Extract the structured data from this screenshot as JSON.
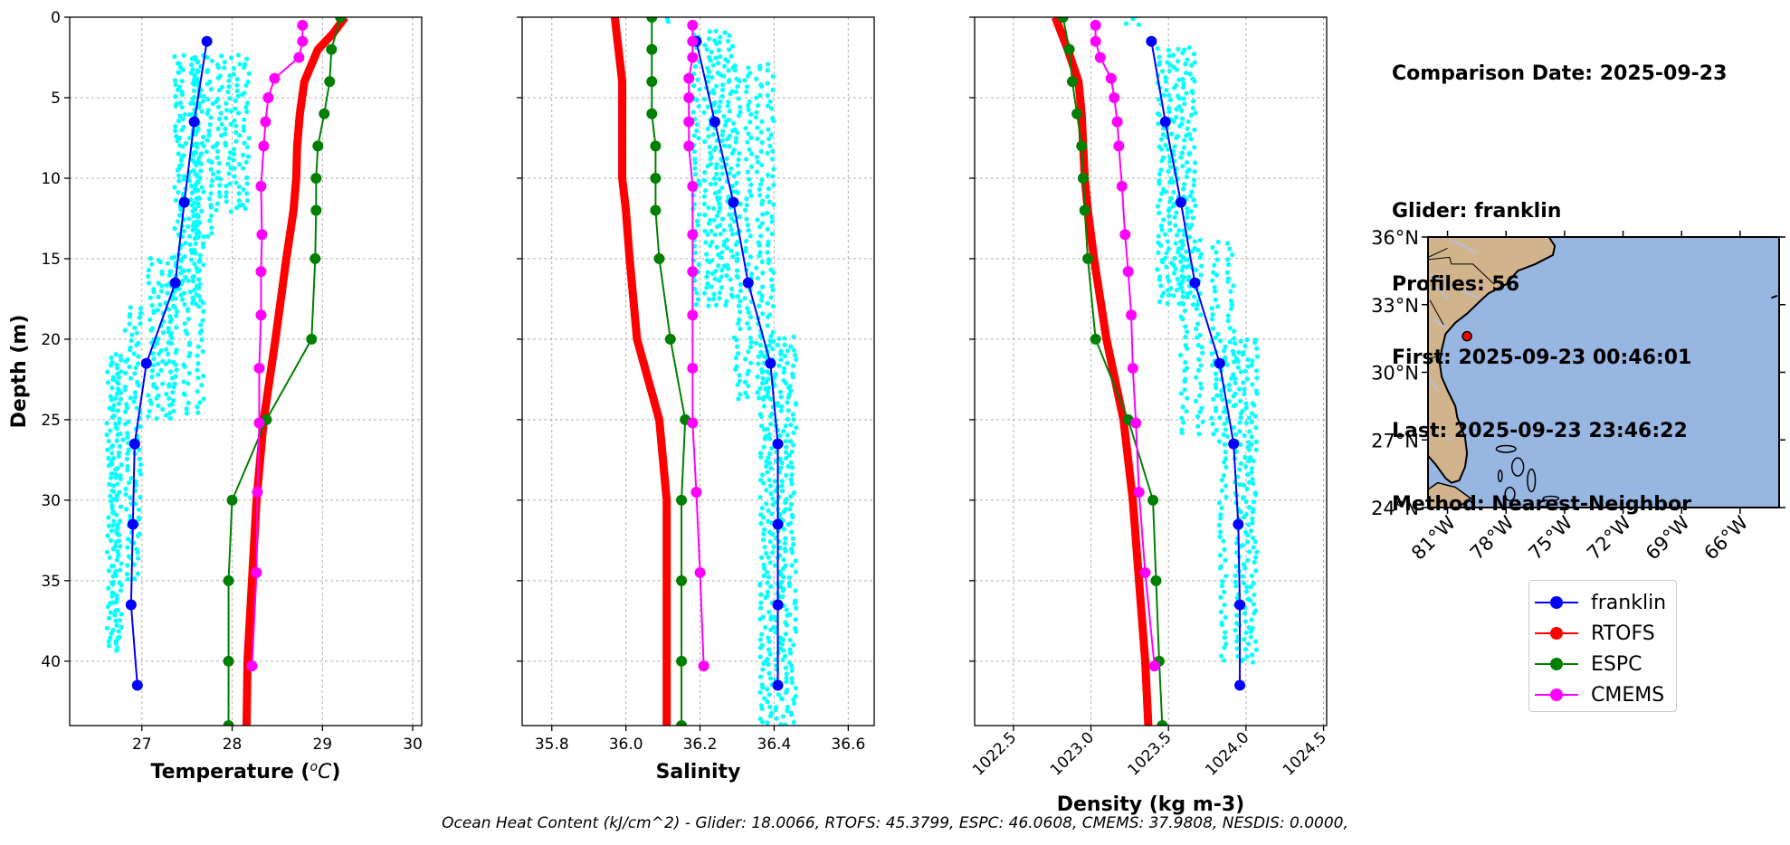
{
  "info": {
    "comparison_date": "Comparison Date: 2025-09-23",
    "glider": "Glider: franklin",
    "profiles": "Profiles: 56",
    "first": "First: 2025-09-23 00:46:01",
    "last": "Last: 2025-09-23 23:46:22",
    "method": "Method: Nearest-Neighbor"
  },
  "footer_text": "Ocean Heat Content (kJ/cm^2) - Glider: 18.0066,  RTOFS: 45.3799,  ESPC: 46.0608,  CMEMS: 37.9808,  NESDIS: 0.0000,",
  "colors": {
    "franklin": "#0000ff",
    "RTOFS": "#ff0000",
    "ESPC": "#008000",
    "CMEMS": "#ff00ff",
    "raw_points": "#00ffff",
    "ocean": "#97b6e1",
    "land": "#d2b48c",
    "rivers": "#a8c5e8",
    "grid": "#b0b0b0"
  },
  "legend": [
    {
      "name": "franklin",
      "color": "#0000ff"
    },
    {
      "name": "RTOFS",
      "color": "#ff0000"
    },
    {
      "name": "ESPC",
      "color": "#008000"
    },
    {
      "name": "CMEMS",
      "color": "#ff00ff"
    }
  ],
  "chart_data": [
    {
      "type": "line",
      "xlabel": "Temperature ($^oC$)",
      "ylabel": "Depth (m)",
      "xlim": [
        26.2,
        30.1
      ],
      "ylim": [
        44,
        0
      ],
      "xticks": [
        "27",
        "28",
        "29",
        "30"
      ],
      "yticks": [
        "0",
        "5",
        "10",
        "15",
        "20",
        "25",
        "30",
        "35",
        "40"
      ],
      "grid": true,
      "scatter_columns": [
        {
          "x": [
            26.7,
            26.65,
            26.75
          ],
          "depth": [
            21,
            39.5
          ]
        },
        {
          "x": [
            26.85,
            26.95
          ],
          "depth": [
            18,
            35
          ]
        },
        {
          "x": [
            27.1,
            27.2,
            27.3,
            27.35
          ],
          "depth": [
            15,
            25
          ]
        },
        {
          "x": [
            27.4,
            27.45,
            27.55,
            27.6,
            27.65
          ],
          "depth": [
            2.5,
            18
          ]
        },
        {
          "x": [
            27.5,
            27.65
          ],
          "depth": [
            18,
            25
          ]
        },
        {
          "x": [
            27.6,
            27.75
          ],
          "depth": [
            2.5,
            14
          ]
        },
        {
          "x": [
            27.85,
            27.95,
            28.05,
            28.15
          ],
          "depth": [
            2.5,
            12
          ]
        }
      ],
      "series": [
        {
          "name": "franklin",
          "color": "#0000ff",
          "line_width": 2,
          "marker": 7,
          "depth": [
            1.5,
            6.5,
            11.5,
            16.5,
            21.5,
            26.5,
            31.5,
            36.5,
            41.5
          ],
          "x": [
            27.72,
            27.58,
            27.47,
            27.37,
            27.05,
            26.92,
            26.9,
            26.88,
            26.95
          ]
        },
        {
          "name": "RTOFS",
          "color": "#ff0000",
          "line_width": 9,
          "marker": 0,
          "depth": [
            0,
            1,
            2,
            4,
            6,
            8,
            10,
            12,
            15,
            20,
            25,
            30,
            35,
            40,
            44
          ],
          "x": [
            29.25,
            29.12,
            28.95,
            28.8,
            28.75,
            28.72,
            28.71,
            28.68,
            28.6,
            28.48,
            28.35,
            28.27,
            28.22,
            28.17,
            28.16
          ]
        },
        {
          "name": "ESPC",
          "color": "#008000",
          "line_width": 2,
          "marker": 7,
          "depth": [
            0,
            2,
            4,
            6,
            8,
            10,
            12,
            15,
            20,
            25,
            30,
            35,
            40,
            44
          ],
          "x": [
            29.2,
            29.1,
            29.08,
            29.02,
            28.95,
            28.93,
            28.93,
            28.92,
            28.88,
            28.38,
            28.0,
            27.96,
            27.96,
            27.96
          ]
        },
        {
          "name": "CMEMS",
          "color": "#ff00ff",
          "line_width": 2,
          "marker": 7,
          "depth": [
            0.5,
            1.5,
            2.5,
            3.8,
            5,
            6.5,
            8,
            10.5,
            13.5,
            15.8,
            18.5,
            21.8,
            25.2,
            29.5,
            34.5,
            40.3
          ],
          "x": [
            28.78,
            28.78,
            28.74,
            28.47,
            28.4,
            28.37,
            28.35,
            28.32,
            28.33,
            28.32,
            28.32,
            28.3,
            28.3,
            28.28,
            28.27,
            28.22
          ]
        }
      ]
    },
    {
      "type": "line",
      "xlabel": "Salinity",
      "ylabel": "",
      "xlim": [
        35.72,
        36.67
      ],
      "ylim": [
        44,
        0
      ],
      "xticks": [
        "35.8",
        "36.0",
        "36.2",
        "36.4",
        "36.6"
      ],
      "yticks": [],
      "grid": true,
      "scatter_columns": [
        {
          "x": [
            36.12
          ],
          "depth": [
            0,
            0.5
          ]
        },
        {
          "x": [
            36.19,
            36.22,
            36.24,
            36.26,
            36.28
          ],
          "depth": [
            1,
            18
          ]
        },
        {
          "x": [
            36.3,
            36.33,
            36.36,
            36.39
          ],
          "depth": [
            3,
            24
          ]
        },
        {
          "x": [
            36.37,
            36.39,
            36.41,
            36.43,
            36.45
          ],
          "depth": [
            20,
            44
          ]
        }
      ],
      "series": [
        {
          "name": "franklin",
          "color": "#0000ff",
          "line_width": 2,
          "marker": 7,
          "depth": [
            1.5,
            6.5,
            11.5,
            16.5,
            21.5,
            26.5,
            31.5,
            36.5,
            41.5
          ],
          "x": [
            36.19,
            36.24,
            36.29,
            36.33,
            36.39,
            36.41,
            36.41,
            36.41,
            36.41
          ]
        },
        {
          "name": "RTOFS",
          "color": "#ff0000",
          "line_width": 9,
          "marker": 0,
          "depth": [
            0,
            2,
            4,
            6,
            8,
            10,
            12,
            15,
            20,
            25,
            30,
            35,
            40,
            44
          ],
          "x": [
            35.97,
            35.98,
            35.99,
            35.99,
            35.99,
            35.99,
            36.0,
            36.01,
            36.03,
            36.09,
            36.11,
            36.11,
            36.11,
            36.11
          ]
        },
        {
          "name": "ESPC",
          "color": "#008000",
          "line_width": 2,
          "marker": 7,
          "depth": [
            0,
            2,
            4,
            6,
            8,
            10,
            12,
            15,
            20,
            25,
            30,
            35,
            40,
            44
          ],
          "x": [
            36.07,
            36.07,
            36.07,
            36.07,
            36.08,
            36.08,
            36.08,
            36.09,
            36.12,
            36.16,
            36.15,
            36.15,
            36.15,
            36.15
          ]
        },
        {
          "name": "CMEMS",
          "color": "#ff00ff",
          "line_width": 2,
          "marker": 7,
          "depth": [
            0.5,
            1.5,
            2.5,
            3.8,
            5,
            6.5,
            8,
            10.5,
            13.5,
            15.8,
            18.5,
            21.8,
            25.2,
            29.5,
            34.5,
            40.3
          ],
          "x": [
            36.18,
            36.18,
            36.18,
            36.17,
            36.17,
            36.17,
            36.17,
            36.18,
            36.18,
            36.18,
            36.18,
            36.18,
            36.18,
            36.19,
            36.2,
            36.21
          ]
        }
      ]
    },
    {
      "type": "line",
      "xlabel": "Density (kg m-3)",
      "ylabel": "",
      "xlim": [
        1022.25,
        1024.52
      ],
      "ylim": [
        44,
        0
      ],
      "xticks": [
        "1022.5",
        "1023.0",
        "1023.5",
        "1024.0",
        "1024.5"
      ],
      "yticks": [],
      "grid": true,
      "scatter_columns": [
        {
          "x": [
            1023.25,
            1023.3
          ],
          "depth": [
            0,
            0.5
          ]
        },
        {
          "x": [
            1023.45,
            1023.5,
            1023.55,
            1023.6,
            1023.65
          ],
          "depth": [
            2,
            18
          ]
        },
        {
          "x": [
            1023.6,
            1023.7,
            1023.8,
            1023.9
          ],
          "depth": [
            14,
            26
          ]
        },
        {
          "x": [
            1023.85,
            1023.95,
            1024.0,
            1024.05
          ],
          "depth": [
            20,
            40
          ]
        }
      ],
      "series": [
        {
          "name": "franklin",
          "color": "#0000ff",
          "line_width": 2,
          "marker": 7,
          "depth": [
            1.5,
            6.5,
            11.5,
            16.5,
            21.5,
            26.5,
            31.5,
            36.5,
            41.5
          ],
          "x": [
            1023.39,
            1023.48,
            1023.58,
            1023.67,
            1023.83,
            1023.92,
            1023.95,
            1023.96,
            1023.96
          ]
        },
        {
          "name": "RTOFS",
          "color": "#ff0000",
          "line_width": 9,
          "marker": 0,
          "depth": [
            0,
            2,
            4,
            6,
            8,
            10,
            12,
            15,
            20,
            25,
            30,
            35,
            40,
            44
          ],
          "x": [
            1022.77,
            1022.85,
            1022.92,
            1022.94,
            1022.95,
            1022.96,
            1022.98,
            1023.02,
            1023.1,
            1023.21,
            1023.27,
            1023.31,
            1023.35,
            1023.37
          ]
        },
        {
          "name": "ESPC",
          "color": "#008000",
          "line_width": 2,
          "marker": 7,
          "depth": [
            0,
            2,
            4,
            6,
            8,
            10,
            12,
            15,
            20,
            25,
            30,
            35,
            40,
            44
          ],
          "x": [
            1022.82,
            1022.86,
            1022.88,
            1022.91,
            1022.94,
            1022.95,
            1022.96,
            1022.98,
            1023.03,
            1023.24,
            1023.4,
            1023.42,
            1023.44,
            1023.46
          ]
        },
        {
          "name": "CMEMS",
          "color": "#ff00ff",
          "line_width": 2,
          "marker": 7,
          "depth": [
            0.5,
            1.5,
            2.5,
            3.8,
            5,
            6.5,
            8,
            10.5,
            13.5,
            15.8,
            18.5,
            21.8,
            25.2,
            29.5,
            34.5,
            40.3
          ],
          "x": [
            1023.03,
            1023.03,
            1023.06,
            1023.13,
            1023.15,
            1023.17,
            1023.18,
            1023.2,
            1023.22,
            1023.24,
            1023.26,
            1023.27,
            1023.29,
            1023.31,
            1023.35,
            1023.41
          ]
        }
      ]
    },
    {
      "type": "map",
      "lon_range": [
        -82,
        -64
      ],
      "lat_range": [
        24,
        36
      ],
      "xticks": [
        "81°W",
        "78°W",
        "75°W",
        "72°W",
        "69°W",
        "66°W"
      ],
      "yticks": [
        "24°N",
        "27°N",
        "30°N",
        "33°N",
        "36°N"
      ],
      "glider_position": {
        "lon": -80.0,
        "lat": 31.6
      }
    }
  ]
}
